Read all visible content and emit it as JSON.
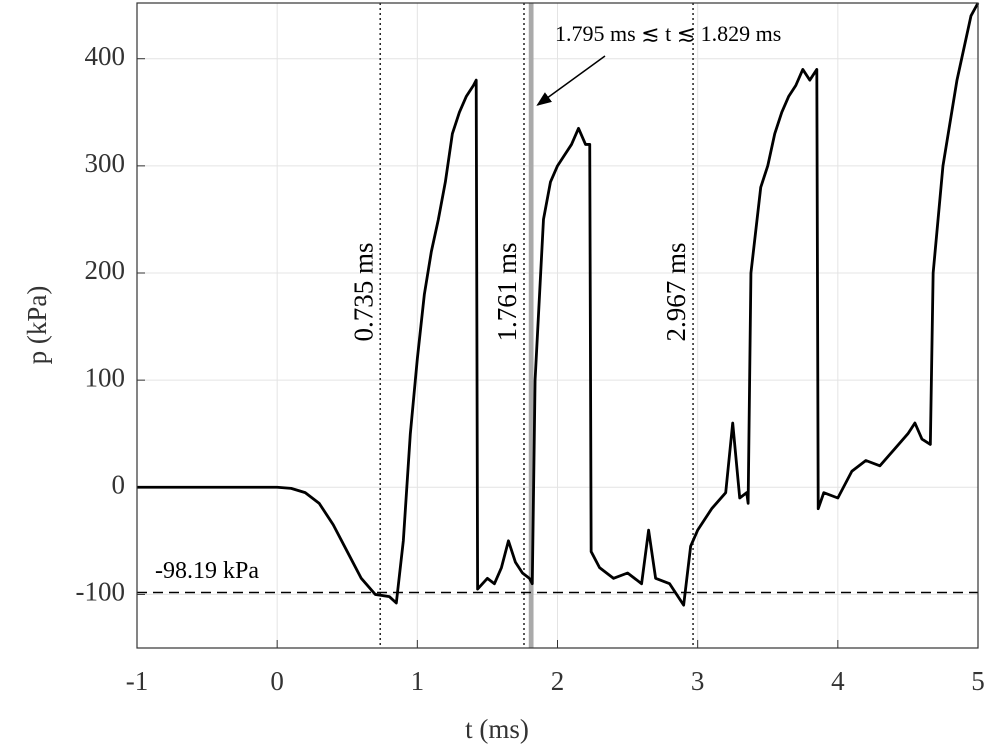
{
  "chart_data": {
    "type": "line",
    "xlabel": "t (ms)",
    "ylabel": "p (kPa)",
    "x": [
      -1,
      -0.5,
      0,
      0.1,
      0.2,
      0.3,
      0.4,
      0.5,
      0.6,
      0.7,
      0.8,
      0.85,
      0.9,
      0.95,
      1.0,
      1.05,
      1.1,
      1.15,
      1.2,
      1.25,
      1.3,
      1.35,
      1.4,
      1.42,
      1.43,
      1.5,
      1.55,
      1.6,
      1.65,
      1.7,
      1.75,
      1.8,
      1.82,
      1.84,
      1.9,
      1.95,
      2.0,
      2.05,
      2.1,
      2.15,
      2.2,
      2.23,
      2.24,
      2.3,
      2.4,
      2.5,
      2.6,
      2.65,
      2.7,
      2.8,
      2.9,
      2.95,
      3.0,
      3.1,
      3.2,
      3.25,
      3.3,
      3.35,
      3.36,
      3.38,
      3.45,
      3.5,
      3.55,
      3.6,
      3.65,
      3.7,
      3.75,
      3.8,
      3.85,
      3.86,
      3.9,
      4.0,
      4.1,
      4.2,
      4.3,
      4.4,
      4.5,
      4.55,
      4.6,
      4.66,
      4.68,
      4.75,
      4.85,
      4.95,
      5.0
    ],
    "series": [
      {
        "color": "#000000",
        "values": [
          0,
          0,
          0,
          -1,
          -5,
          -15,
          -35,
          -60,
          -85,
          -100,
          -102,
          -108,
          -50,
          50,
          120,
          180,
          220,
          250,
          285,
          330,
          350,
          365,
          375,
          380,
          -95,
          -85,
          -90,
          -75,
          -50,
          -70,
          -80,
          -85,
          -90,
          100,
          250,
          285,
          300,
          310,
          320,
          335,
          320,
          320,
          -60,
          -75,
          -85,
          -80,
          -90,
          -40,
          -85,
          -90,
          -110,
          -55,
          -40,
          -20,
          -5,
          60,
          -10,
          -5,
          -15,
          200,
          280,
          300,
          330,
          350,
          365,
          375,
          390,
          380,
          390,
          -20,
          -5,
          -10,
          15,
          25,
          20,
          35,
          50,
          60,
          45,
          40,
          200,
          300,
          380,
          440,
          452
        ]
      }
    ],
    "xlim": [
      -1,
      5
    ],
    "ylim": [
      -150,
      452
    ],
    "xticks": [
      -1,
      0,
      1,
      2,
      3,
      4,
      5
    ],
    "yticks": [
      -100,
      0,
      100,
      200,
      300,
      400
    ],
    "grid": true,
    "vlines": [
      {
        "x": 0.735,
        "label": "0.735 ms"
      },
      {
        "x": 1.761,
        "label": "1.761 ms"
      },
      {
        "x": 2.967,
        "label": "2.967 ms"
      }
    ],
    "band": {
      "x0": 1.795,
      "x1": 1.829,
      "label": "1.795 ms ≲ t ≲ 1.829 ms"
    },
    "hline": {
      "y": -98.19,
      "label": "-98.19 kPa"
    }
  }
}
